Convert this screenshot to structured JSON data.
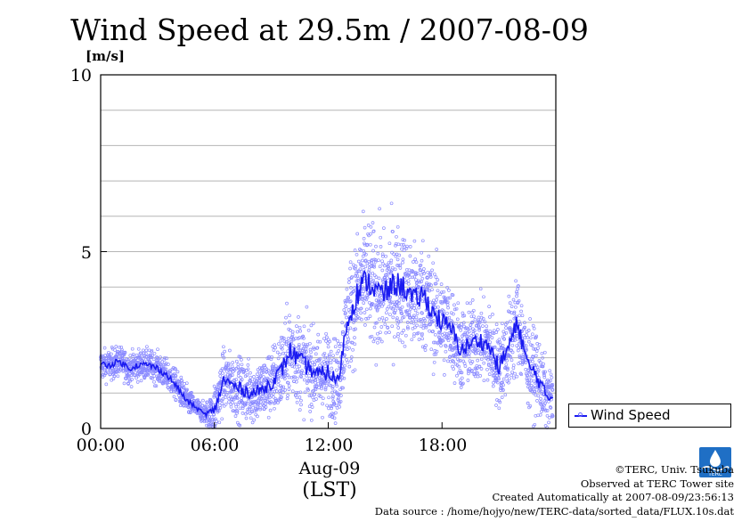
{
  "chart_data": {
    "type": "scatter",
    "title": "Wind Speed at 29.5m / 2007-08-09",
    "ylabel": "[m/s]",
    "xlabel": "(LST)",
    "date_label": "Aug-09",
    "ylim": [
      0,
      10
    ],
    "xlim": [
      "00:00",
      "24:00"
    ],
    "yticks": [
      "0",
      "5",
      "10"
    ],
    "xticks": [
      "00:00",
      "06:00",
      "12:00",
      "18:00"
    ],
    "grid": "horizontal",
    "legend": {
      "position": "bottom-right",
      "entries": [
        "Wind Speed"
      ]
    },
    "series": [
      {
        "name": "Wind Speed",
        "color": "#1a1af0",
        "scatter_color": "#8a8aff",
        "x_hours": [
          0,
          0.5,
          1,
          1.5,
          2,
          2.5,
          3,
          3.5,
          4,
          4.5,
          5,
          5.5,
          6,
          6.5,
          7,
          7.5,
          8,
          8.5,
          9,
          9.5,
          10,
          10.5,
          11,
          11.5,
          12,
          12.5,
          13,
          13.5,
          14,
          14.5,
          15,
          15.5,
          16,
          16.5,
          17,
          17.5,
          18,
          18.5,
          19,
          19.5,
          20,
          20.5,
          21,
          21.5,
          22,
          22.5,
          23,
          23.5
        ],
        "values": [
          1.8,
          1.8,
          1.9,
          1.7,
          1.8,
          1.8,
          1.7,
          1.5,
          1.2,
          0.8,
          0.6,
          0.4,
          0.5,
          1.4,
          1.2,
          1.1,
          1.0,
          1.1,
          1.3,
          1.6,
          2.2,
          1.9,
          1.7,
          1.5,
          1.6,
          1.3,
          3.0,
          3.8,
          4.2,
          3.9,
          3.8,
          4.1,
          4.0,
          3.6,
          3.8,
          3.3,
          3.0,
          2.8,
          2.2,
          2.4,
          2.5,
          2.3,
          1.7,
          2.3,
          3.0,
          1.8,
          1.5,
          0.9
        ],
        "spread": [
          0.3,
          0.3,
          0.3,
          0.3,
          0.3,
          0.3,
          0.3,
          0.3,
          0.3,
          0.3,
          0.2,
          0.2,
          0.5,
          0.6,
          0.6,
          0.6,
          0.6,
          0.6,
          0.7,
          0.8,
          0.9,
          0.9,
          0.8,
          0.8,
          0.8,
          0.8,
          1.0,
          1.2,
          1.2,
          1.2,
          1.2,
          1.2,
          1.1,
          1.1,
          1.1,
          1.0,
          1.0,
          0.9,
          0.8,
          0.8,
          0.8,
          0.8,
          0.8,
          0.9,
          1.0,
          0.8,
          0.8,
          0.6
        ]
      }
    ]
  },
  "credits": {
    "copyright": "©TERC, Univ. Tsukuba",
    "site": "Observed at TERC Tower site",
    "created": "Created Automatically at 2007-08-09/23:56:13",
    "source": "Data source : /home/hojyo/new/TERC-data/sorted_data/FLUX.10s.dat"
  },
  "logo": {
    "text": "TERC",
    "color": "#1f6fc5"
  }
}
